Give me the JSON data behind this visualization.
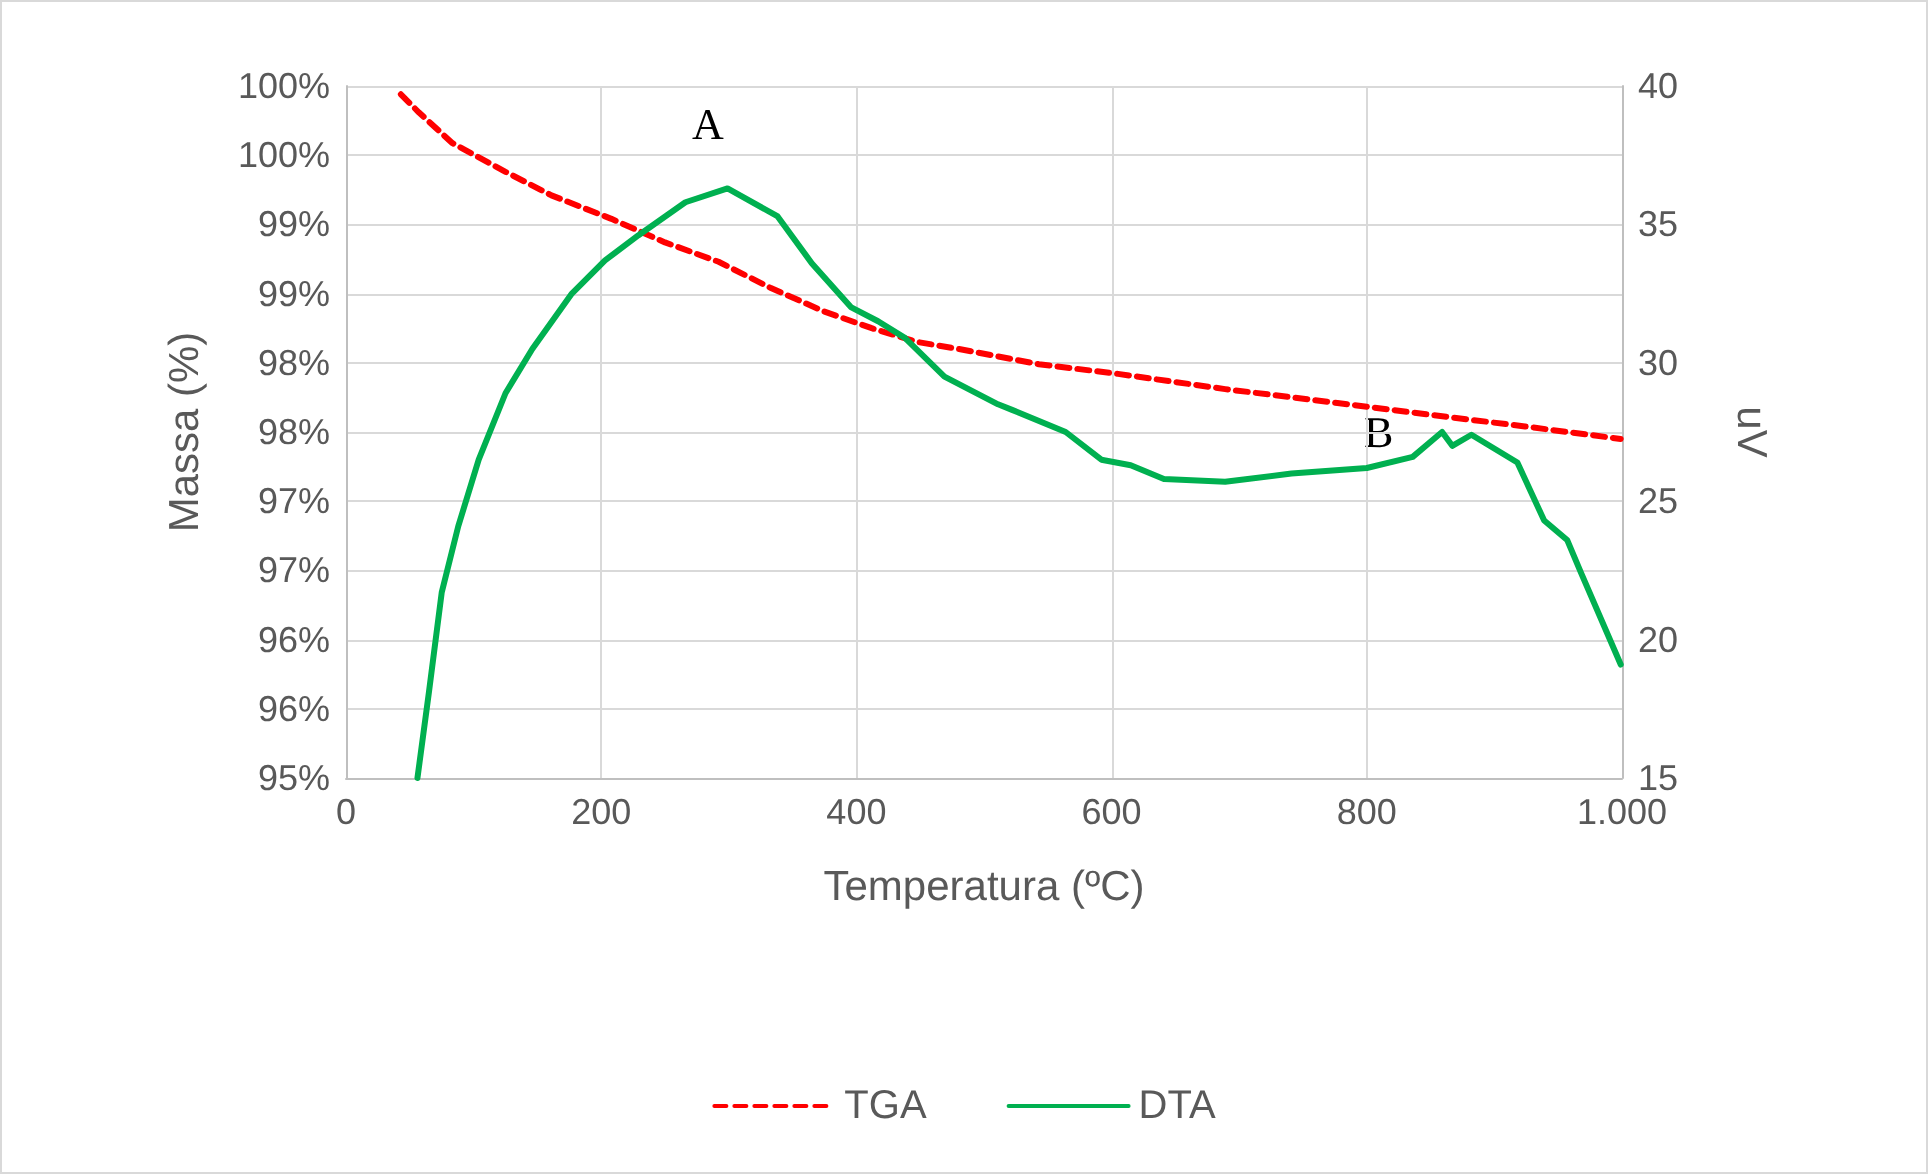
{
  "chart_data": {
    "type": "line",
    "xlabel": "Temperatura (ºC)",
    "ylabel": "Massa (%)",
    "y2label": "uV",
    "xlim": [
      0,
      1000
    ],
    "xticks": [
      0,
      200,
      400,
      600,
      800,
      {
        "value": 1000,
        "label": "1.000"
      }
    ],
    "ylim": [
      95,
      100
    ],
    "yticks": [
      {
        "value": 95,
        "label": "95%"
      },
      {
        "value": 95.5,
        "label": "96%"
      },
      {
        "value": 96,
        "label": "96%"
      },
      {
        "value": 96.5,
        "label": "97%"
      },
      {
        "value": 97,
        "label": "97%"
      },
      {
        "value": 97.5,
        "label": "98%"
      },
      {
        "value": 98,
        "label": "98%"
      },
      {
        "value": 98.5,
        "label": "99%"
      },
      {
        "value": 99,
        "label": "99%"
      },
      {
        "value": 99.5,
        "label": "100%"
      },
      {
        "value": 100,
        "label": "100%"
      }
    ],
    "y2lim": [
      15,
      40
    ],
    "y2ticks": [
      15,
      20,
      25,
      30,
      35,
      40
    ],
    "grid": true,
    "legend": "bottom",
    "marker": "none",
    "series": [
      {
        "name": "TGA",
        "color": "#ff0000",
        "line_style": "dashed",
        "x": [
          43,
          57,
          83,
          125,
          161,
          208,
          250,
          292,
          333,
          375,
          412,
          448,
          480,
          543,
          605,
          689,
          777,
          845,
          924,
          999
        ],
        "values": [
          99.94,
          99.81,
          99.59,
          99.38,
          99.21,
          99.04,
          98.87,
          98.73,
          98.54,
          98.37,
          98.25,
          98.15,
          98.1,
          97.99,
          97.92,
          97.81,
          97.71,
          97.63,
          97.54,
          97.45
        ]
      },
      {
        "name": "DTA",
        "color": "#00b050",
        "line_style": "solid",
        "axis": "y2",
        "x": [
          56,
          65,
          75,
          88,
          104,
          125,
          146,
          177,
          203,
          229,
          266,
          299,
          338,
          365,
          396,
          417,
          438,
          469,
          511,
          522,
          564,
          592,
          615,
          641,
          689,
          741,
          800,
          836,
          859,
          867,
          882,
          918,
          939,
          957,
          968,
          999
        ],
        "values": [
          15,
          18.1,
          21.7,
          24.1,
          26.5,
          28.9,
          30.5,
          32.5,
          33.7,
          34.6,
          35.8,
          36.3,
          35.3,
          33.6,
          32,
          31.5,
          30.9,
          29.5,
          28.5,
          28.3,
          27.5,
          26.5,
          26.3,
          25.8,
          25.7,
          26,
          26.2,
          26.6,
          27.5,
          27,
          27.4,
          26.4,
          24.3,
          23.6,
          22.4,
          19.1
        ]
      }
    ],
    "annotations": [
      "A",
      "B"
    ]
  }
}
